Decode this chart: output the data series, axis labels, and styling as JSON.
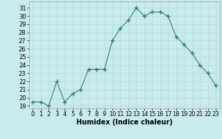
{
  "x": [
    0,
    1,
    2,
    3,
    4,
    5,
    6,
    7,
    8,
    9,
    10,
    11,
    12,
    13,
    14,
    15,
    16,
    17,
    18,
    19,
    20,
    21,
    22,
    23
  ],
  "y": [
    19.5,
    19.5,
    19.0,
    22.0,
    19.5,
    20.5,
    21.0,
    23.5,
    23.5,
    23.5,
    27.0,
    28.5,
    29.5,
    31.0,
    30.0,
    30.5,
    30.5,
    30.0,
    27.5,
    26.5,
    25.5,
    24.0,
    23.0,
    21.5
  ],
  "title": "",
  "xlabel": "Humidex (Indice chaleur)",
  "ylabel": "",
  "ylim": [
    18.7,
    31.8
  ],
  "xlim": [
    -0.5,
    23.5
  ],
  "yticks": [
    19,
    20,
    21,
    22,
    23,
    24,
    25,
    26,
    27,
    28,
    29,
    30,
    31
  ],
  "xticks": [
    0,
    1,
    2,
    3,
    4,
    5,
    6,
    7,
    8,
    9,
    10,
    11,
    12,
    13,
    14,
    15,
    16,
    17,
    18,
    19,
    20,
    21,
    22,
    23
  ],
  "line_color": "#2e7d6e",
  "marker": "+",
  "marker_size": 4,
  "bg_color": "#c8ebeb",
  "grid_color": "#b8d8d8",
  "label_fontsize": 7,
  "tick_fontsize": 6
}
